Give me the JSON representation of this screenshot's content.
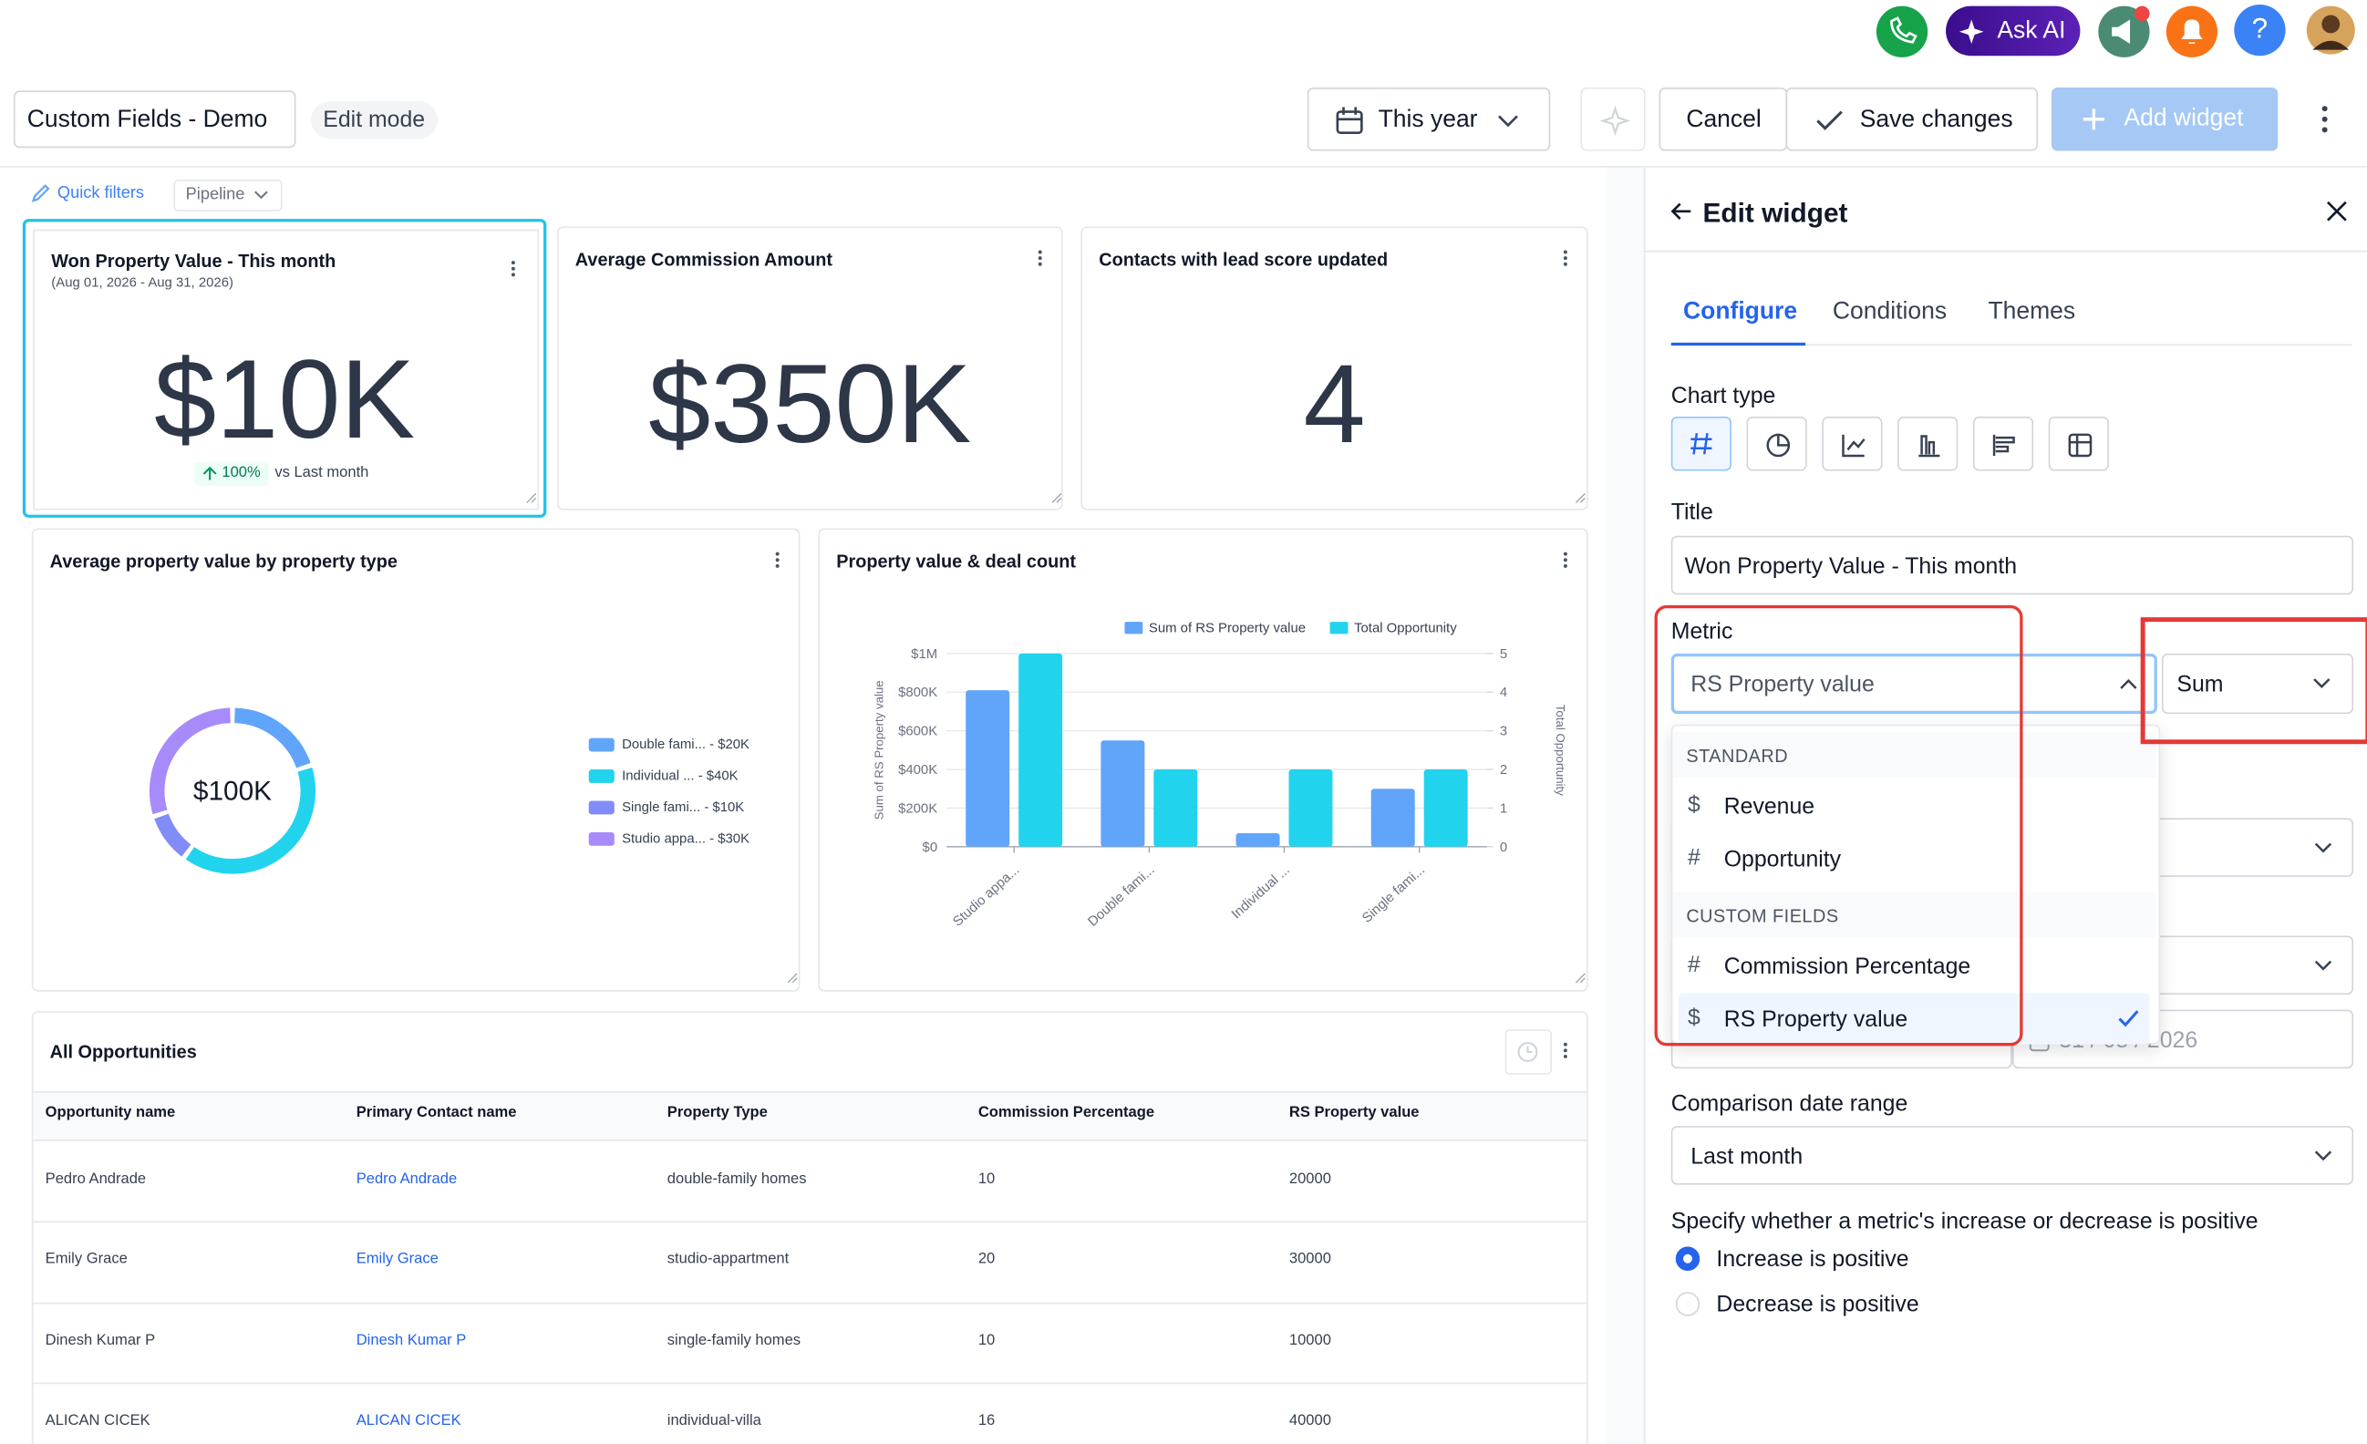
{
  "top_bar": {
    "ask_ai": "Ask AI",
    "help": "?"
  },
  "toolbar": {
    "dashboard_name": "Custom Fields - Demo",
    "mode": "Edit mode",
    "date_range": "This year",
    "cancel": "Cancel",
    "save": "Save changes",
    "add_widget": "Add widget"
  },
  "filters": {
    "quick_filters": "Quick filters",
    "pipeline": "Pipeline"
  },
  "widgets": [
    {
      "title": "Won Property Value - This month",
      "subtitle": "(Aug 01, 2026 - Aug 31, 2026)",
      "value": "$10K",
      "change": "100%",
      "comparison": "vs Last month"
    },
    {
      "title": "Average Commission Amount",
      "value": "$350K"
    },
    {
      "title": "Contacts with lead score updated",
      "value": "4"
    }
  ],
  "chart_data": [
    {
      "type": "pie",
      "title": "Average property value by property type",
      "center_label": "$100K",
      "categories": [
        "Double fami... - $20K",
        "Individual ... - $40K",
        "Single fami... - $10K",
        "Studio appa... - $30K"
      ],
      "values": [
        20000,
        40000,
        10000,
        30000
      ],
      "colors": [
        "#60a5fa",
        "#22d3ee",
        "#818cf8",
        "#a78bfa"
      ],
      "donut": true
    },
    {
      "type": "bar",
      "title": "Property value & deal count",
      "categories": [
        "Studio appa...",
        "Double fami...",
        "Individual ...",
        "Single fami..."
      ],
      "series": [
        {
          "name": "Sum of RS Property value",
          "color": "#60a5fa",
          "values": [
            810000,
            550000,
            70000,
            300000
          ]
        },
        {
          "name": "Total Opportunity",
          "color": "#22d3ee",
          "axis": "y2",
          "values": [
            5,
            2,
            2,
            2
          ]
        }
      ],
      "ylabel": "Sum of RS Property value",
      "y2label": "Total Opportunity",
      "ylim": [
        0,
        1000000
      ],
      "yticks": [
        {
          "value": 0,
          "label": "$0"
        },
        {
          "value": 200000,
          "label": "$200K"
        },
        {
          "value": 400000,
          "label": "$400K"
        },
        {
          "value": 600000,
          "label": "$600K"
        },
        {
          "value": 800000,
          "label": "$800K"
        },
        {
          "value": 1000000,
          "label": "$1M"
        }
      ],
      "y2lim": [
        0,
        5
      ],
      "y2ticks": [
        0,
        1,
        2,
        3,
        4,
        5
      ],
      "grid": true,
      "legend": "top"
    }
  ],
  "table": {
    "title": "All Opportunities",
    "columns": [
      "Opportunity name",
      "Primary Contact name",
      "Property Type",
      "Commission Percentage",
      "RS Property value"
    ],
    "rows": [
      [
        "Pedro Andrade",
        "Pedro Andrade",
        "double-family homes",
        10,
        20000
      ],
      [
        "Emily Grace",
        "Emily Grace",
        "studio-appartment",
        20,
        30000
      ],
      [
        "Dinesh Kumar P",
        "Dinesh Kumar P",
        "single-family homes",
        10,
        10000
      ],
      [
        "ALICAN CICEK",
        "ALICAN CICEK",
        "individual-villa",
        16,
        40000
      ]
    ]
  },
  "edit_panel": {
    "title": "Edit widget",
    "tabs": [
      "Configure",
      "Conditions",
      "Themes"
    ],
    "chart_type_label": "Chart type",
    "title_label": "Title",
    "title_value": "Won Property Value - This month",
    "metric_label": "Metric",
    "metric_value": "RS Property value",
    "aggregation": "Sum",
    "metric_options": [
      {
        "group": "STANDARD",
        "items": [
          {
            "icon": "$",
            "label": "Revenue",
            "selected": false
          },
          {
            "icon": "#",
            "label": "Opportunity",
            "selected": false
          }
        ]
      },
      {
        "group": "CUSTOM FIELDS",
        "items": [
          {
            "icon": "#",
            "label": "Commission Percentage",
            "selected": false
          },
          {
            "icon": "$",
            "label": "RS Property value",
            "selected": true
          }
        ]
      }
    ],
    "end_date": "31 / 08 / 2026",
    "comparison_label": "Comparison date range",
    "comparison_value": "Last month",
    "direction_label": "Specify whether a metric's increase or decrease is positive",
    "direction_options": [
      {
        "label": "Increase is positive",
        "selected": true
      },
      {
        "label": "Decrease is positive",
        "selected": false
      }
    ]
  }
}
